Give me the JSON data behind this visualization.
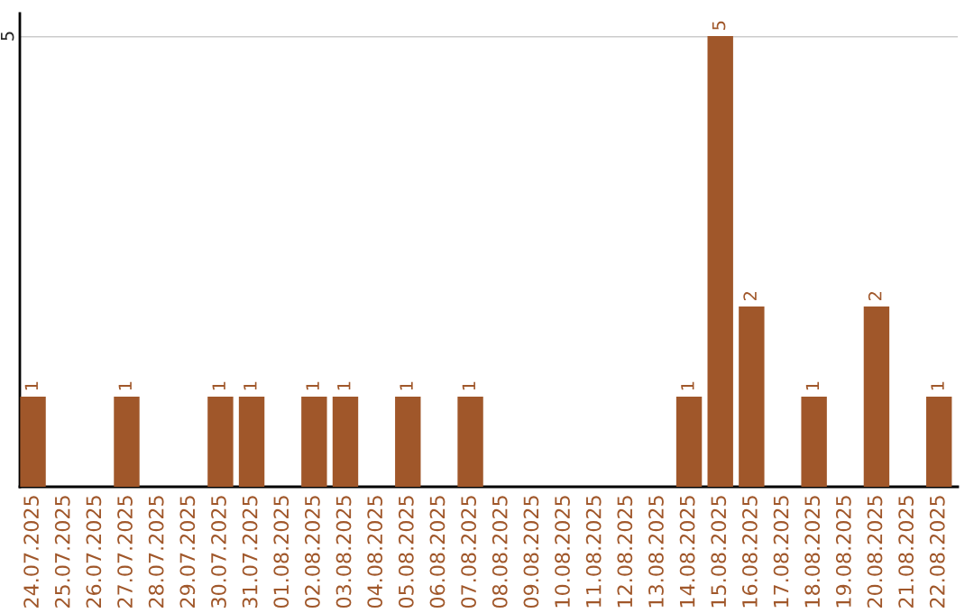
{
  "chart_data": {
    "type": "bar",
    "categories": [
      "24.07.2025",
      "25.07.2025",
      "26.07.2025",
      "27.07.2025",
      "28.07.2025",
      "29.07.2025",
      "30.07.2025",
      "31.07.2025",
      "01.08.2025",
      "02.08.2025",
      "03.08.2025",
      "04.08.2025",
      "05.08.2025",
      "06.08.2025",
      "07.08.2025",
      "08.08.2025",
      "09.08.2025",
      "10.08.2025",
      "11.08.2025",
      "12.08.2025",
      "13.08.2025",
      "14.08.2025",
      "15.08.2025",
      "16.08.2025",
      "17.08.2025",
      "18.08.2025",
      "19.08.2025",
      "20.08.2025",
      "21.08.2025",
      "22.08.2025"
    ],
    "values": [
      1,
      0,
      0,
      1,
      0,
      0,
      1,
      1,
      0,
      1,
      1,
      0,
      1,
      0,
      1,
      0,
      0,
      0,
      0,
      0,
      0,
      1,
      5,
      2,
      0,
      1,
      0,
      2,
      0,
      1
    ],
    "value_labels": [
      "1",
      null,
      null,
      "1",
      null,
      null,
      "1",
      "1",
      null,
      "1",
      "1",
      null,
      "1",
      null,
      "1",
      null,
      null,
      null,
      null,
      null,
      null,
      "1",
      "5",
      "2",
      null,
      "1",
      null,
      "2",
      null,
      "1"
    ],
    "color": "#a0572a",
    "ylim": [
      0,
      5
    ],
    "yticks": [
      5
    ],
    "ref_lines": [
      {
        "axis": "y",
        "value": 5,
        "color": "#cccccc"
      }
    ],
    "legend": false
  }
}
